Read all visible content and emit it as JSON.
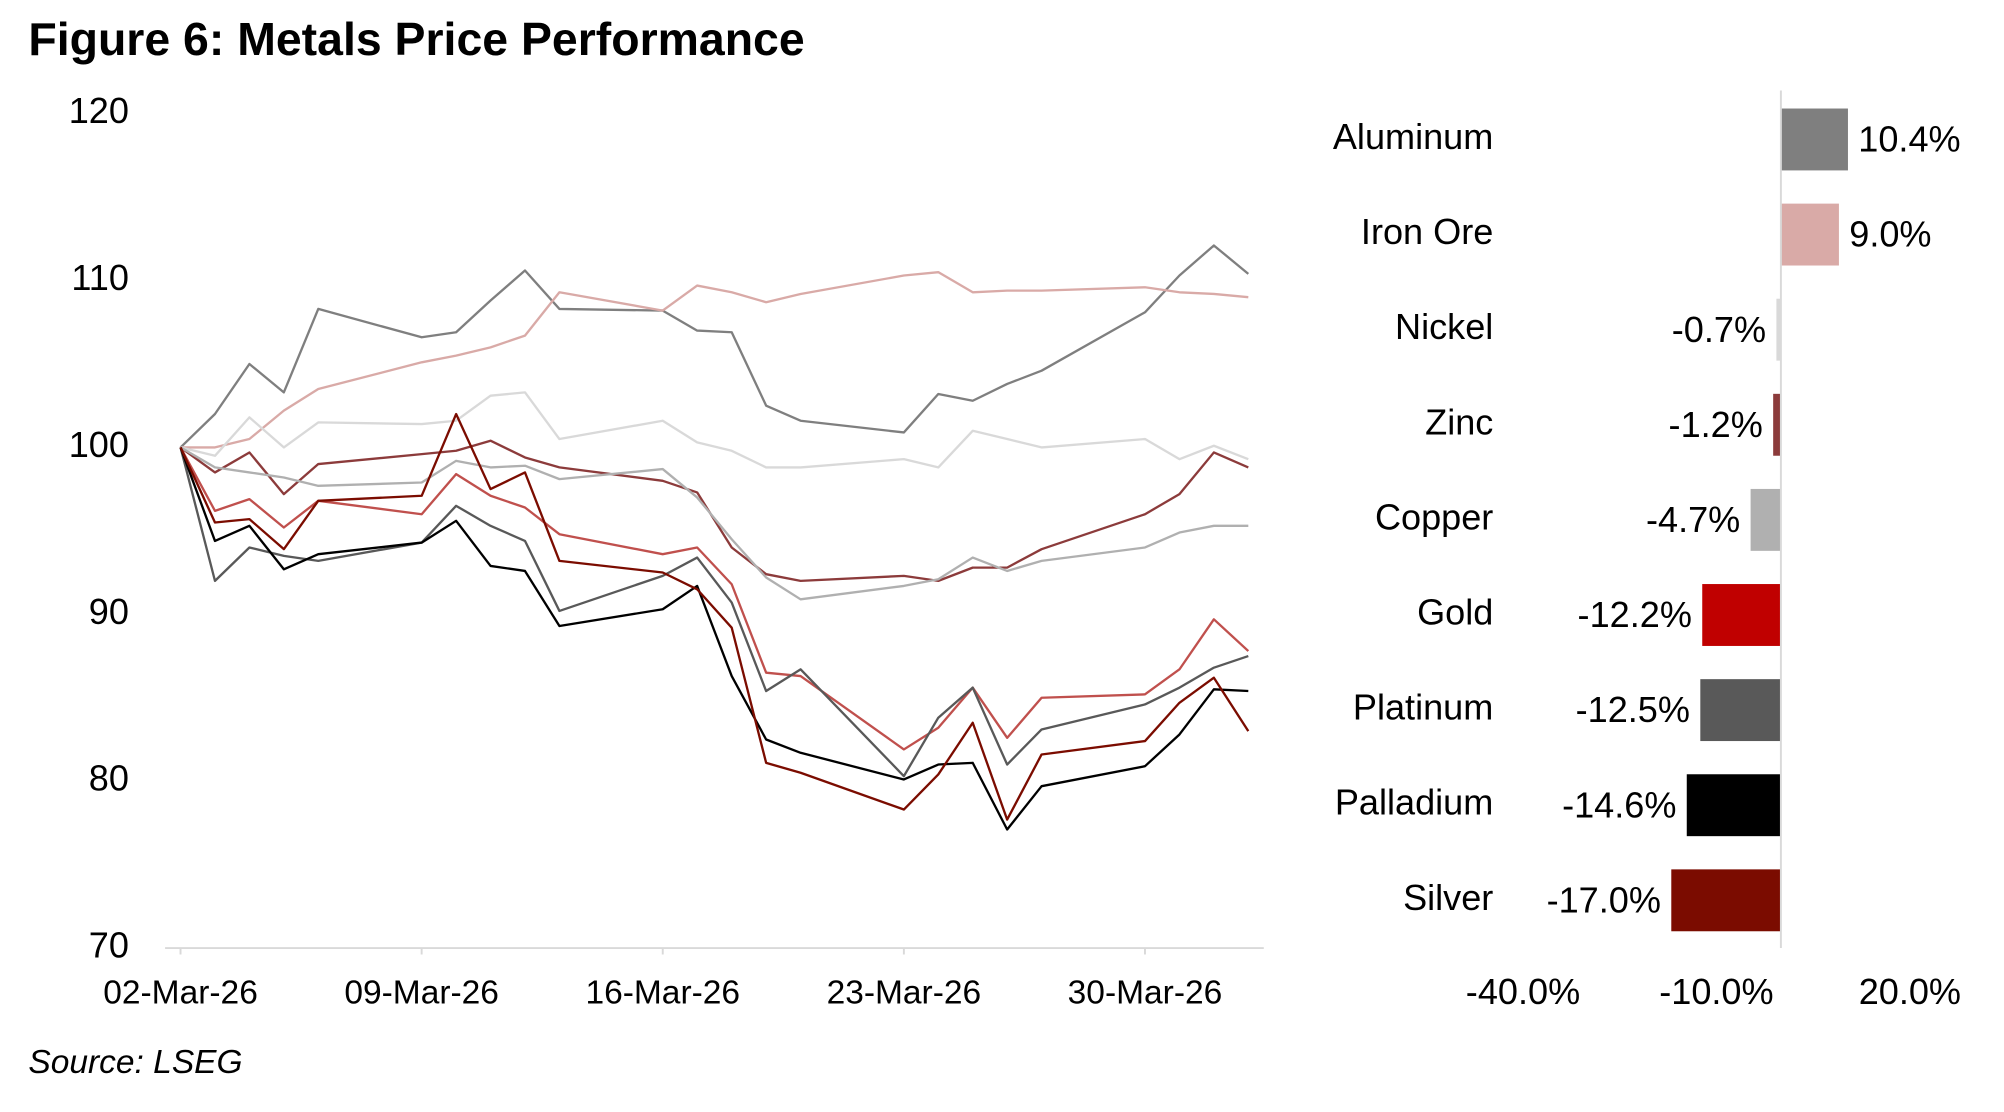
{
  "title": "Figure 6: Metals Price Performance",
  "source": "Source: LSEG",
  "chart_data": [
    {
      "type": "line",
      "x": [
        "02-Mar-26",
        "03-Mar-26",
        "04-Mar-26",
        "05-Mar-26",
        "06-Mar-26",
        "09-Mar-26",
        "10-Mar-26",
        "11-Mar-26",
        "12-Mar-26",
        "13-Mar-26",
        "16-Mar-26",
        "17-Mar-26",
        "18-Mar-26",
        "19-Mar-26",
        "20-Mar-26",
        "23-Mar-26",
        "24-Mar-26",
        "25-Mar-26",
        "26-Mar-26",
        "27-Mar-26",
        "30-Mar-26",
        "31-Mar-26",
        "01-Apr-26",
        "02-Apr-26"
      ],
      "xticks": [
        "02-Mar-26",
        "09-Mar-26",
        "16-Mar-26",
        "23-Mar-26",
        "30-Mar-26"
      ],
      "ylim": [
        70,
        120
      ],
      "yticks": [
        70,
        80,
        90,
        100,
        110,
        120
      ],
      "series": [
        {
          "color": "#7f7f7f",
          "values": [
            100,
            102,
            105,
            103.3,
            108.3,
            106.6,
            106.9,
            108.8,
            110.6,
            108.3,
            108.2,
            107,
            106.9,
            102.5,
            101.6,
            100.9,
            103.2,
            102.8,
            103.8,
            104.6,
            108.1,
            110.3,
            112.1,
            110.4
          ]
        },
        {
          "color": "#d9aaa7",
          "values": [
            100,
            100,
            100.5,
            102.2,
            103.5,
            105.1,
            105.5,
            106,
            106.7,
            109.3,
            108.2,
            109.7,
            109.3,
            108.7,
            109.2,
            110.3,
            110.5,
            109.3,
            109.4,
            109.4,
            109.6,
            109.3,
            109.2,
            109.0
          ]
        },
        {
          "color": "#d9d9d9",
          "values": [
            100,
            99.5,
            101.8,
            100,
            101.5,
            101.4,
            101.6,
            103.1,
            103.3,
            100.5,
            101.6,
            100.3,
            99.8,
            98.8,
            98.8,
            99.3,
            98.8,
            101,
            100.5,
            100,
            100.5,
            99.3,
            100.1,
            99.3
          ]
        },
        {
          "color": "#8c3b3b",
          "values": [
            100,
            98.5,
            99.7,
            97.2,
            99,
            99.6,
            99.8,
            100.4,
            99.4,
            98.8,
            98,
            97.3,
            94,
            92.4,
            92,
            92.3,
            92,
            92.8,
            92.8,
            93.9,
            96,
            97.2,
            99.7,
            98.8
          ]
        },
        {
          "color": "#b0b0b0",
          "values": [
            100,
            98.8,
            98.5,
            98.2,
            97.7,
            97.9,
            99.2,
            98.8,
            98.9,
            98.1,
            98.7,
            97,
            94.5,
            92.2,
            90.9,
            91.7,
            92.1,
            93.4,
            92.6,
            93.2,
            94,
            94.9,
            95.3,
            95.3
          ]
        },
        {
          "color": "#c0504d",
          "values": [
            100,
            96.2,
            96.9,
            95.2,
            96.8,
            96,
            98.4,
            97.1,
            96.4,
            94.8,
            93.6,
            94,
            91.8,
            86.5,
            86.3,
            81.9,
            83.2,
            85.6,
            82.6,
            85,
            85.2,
            86.7,
            89.7,
            87.8
          ]
        },
        {
          "color": "#595959",
          "values": [
            100,
            92,
            94,
            93.5,
            93.2,
            94.3,
            96.5,
            95.3,
            94.4,
            90.2,
            92.3,
            93.4,
            90.7,
            85.4,
            86.7,
            80.3,
            83.8,
            85.6,
            81,
            83.1,
            84.6,
            85.6,
            86.8,
            87.5
          ]
        },
        {
          "color": "#000000",
          "values": [
            100,
            94.4,
            95.3,
            92.7,
            93.6,
            94.3,
            95.6,
            92.9,
            92.6,
            89.3,
            90.3,
            91.7,
            86.3,
            82.5,
            81.7,
            80.1,
            81,
            81.1,
            77.1,
            79.7,
            80.9,
            82.8,
            85.5,
            85.4
          ]
        },
        {
          "color": "#7b0c00",
          "values": [
            100,
            95.5,
            95.7,
            93.9,
            96.8,
            97.1,
            102,
            97.5,
            98.5,
            93.2,
            92.5,
            91.5,
            89.2,
            81.1,
            80.5,
            78.3,
            80.4,
            83.5,
            77.7,
            81.6,
            82.4,
            84.7,
            86.2,
            83.0
          ]
        }
      ]
    },
    {
      "type": "hbar",
      "categories": [
        "Aluminum",
        "Iron Ore",
        "Nickel",
        "Zinc",
        "Copper",
        "Gold",
        "Platinum",
        "Palladium",
        "Silver"
      ],
      "values": [
        10.4,
        9.0,
        -0.7,
        -1.2,
        -4.7,
        -12.2,
        -12.5,
        -14.6,
        -17.0
      ],
      "value_labels": [
        "10.4%",
        "9.0%",
        "-0.7%",
        "-1.2%",
        "-4.7%",
        "-12.2%",
        "-12.5%",
        "-14.6%",
        "-17.0%"
      ],
      "colors": [
        "#7f7f7f",
        "#d9aaa7",
        "#d9d9d9",
        "#8c3b3b",
        "#b0b0b0",
        "#c00000",
        "#595959",
        "#000000",
        "#7b0c00"
      ],
      "xlim": [
        -40,
        20
      ],
      "xticks": [
        {
          "value": -40,
          "label": "-40.0%"
        },
        {
          "value": -10,
          "label": "-10.0%"
        },
        {
          "value": 20,
          "label": "20.0%"
        }
      ]
    }
  ]
}
